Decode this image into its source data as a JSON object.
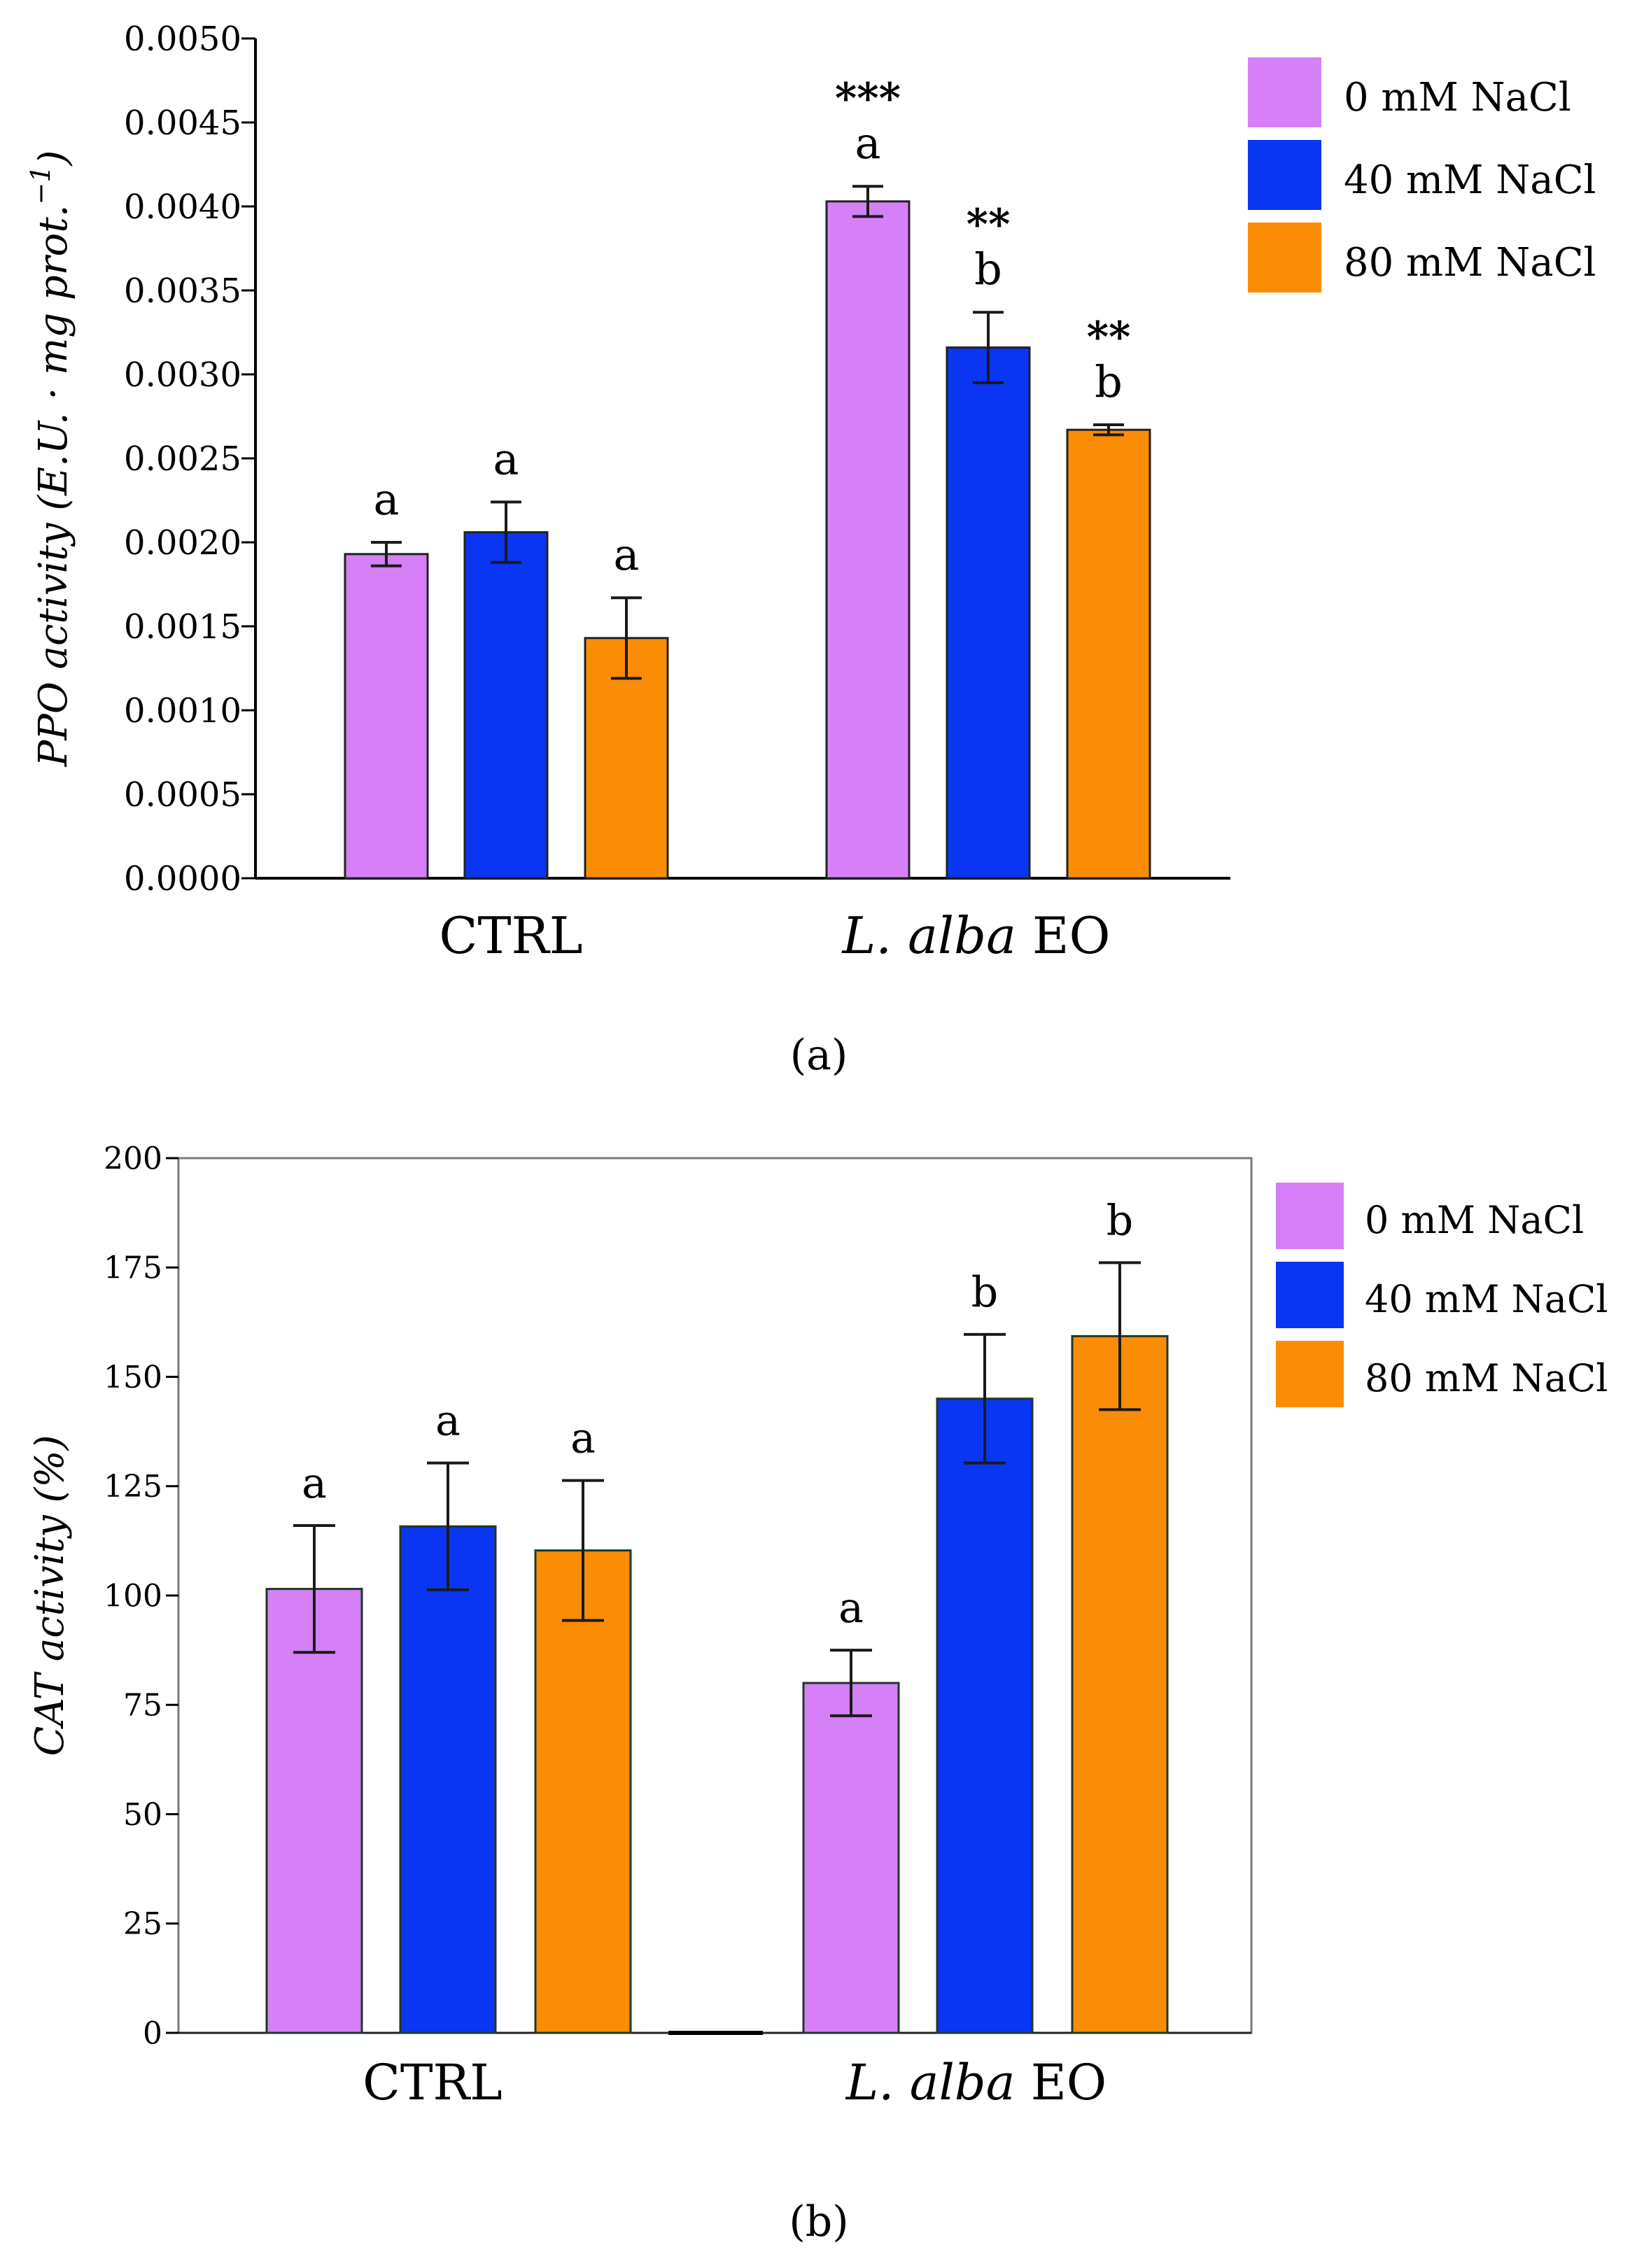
{
  "chart_data": [
    {
      "panel": "a",
      "type": "bar",
      "caption": "(a)",
      "ylabel": "PPO activity (E.U. · mg prot.",
      "ylabel_sup": "−1",
      "ylabel_close": ")",
      "ylim": [
        0,
        0.005
      ],
      "yticks": [
        "0.0000",
        "0.0005",
        "0.0010",
        "0.0015",
        "0.0020",
        "0.0025",
        "0.0030",
        "0.0035",
        "0.0040",
        "0.0045",
        "0.0050"
      ],
      "yticks_values": [
        0,
        0.0005,
        0.001,
        0.0015,
        0.002,
        0.0025,
        0.003,
        0.0035,
        0.004,
        0.0045,
        0.005
      ],
      "groups": [
        {
          "label": "CTRL",
          "italic": "",
          "rest": ""
        },
        {
          "label": "",
          "italic": "L. alba",
          "rest": " EO"
        }
      ],
      "series": [
        {
          "name": "0 mM NaCl",
          "color": "#d580f7",
          "values": [
            0.00193,
            0.00403
          ],
          "errors": [
            7e-05,
            9e-05
          ],
          "letters": [
            "a",
            "a"
          ],
          "stars": [
            "",
            "***"
          ]
        },
        {
          "name": "40 mM NaCl",
          "color": "#0a35f2",
          "values": [
            0.00206,
            0.00316
          ],
          "errors": [
            0.00018,
            0.00021
          ],
          "letters": [
            "a",
            "b"
          ],
          "stars": [
            "",
            "**"
          ]
        },
        {
          "name": "80 mM NaCl",
          "color": "#fb8c05",
          "values": [
            0.00143,
            0.00267
          ],
          "errors": [
            0.00024,
            3e-05
          ],
          "letters": [
            "a",
            "b"
          ],
          "stars": [
            "",
            "**"
          ]
        }
      ]
    },
    {
      "panel": "b",
      "type": "bar",
      "caption": "(b)",
      "ylabel": "CAT activity (%)",
      "ylim": [
        0,
        200
      ],
      "yticks": [
        "0",
        "25",
        "50",
        "75",
        "100",
        "125",
        "150",
        "175",
        "200"
      ],
      "yticks_values": [
        0,
        25,
        50,
        75,
        100,
        125,
        150,
        175,
        200
      ],
      "groups": [
        {
          "label": "CTRL",
          "italic": "",
          "rest": ""
        },
        {
          "label": "",
          "italic": "L. alba",
          "rest": " EO"
        }
      ],
      "series": [
        {
          "name": "0 mM NaCl",
          "color": "#d580f7",
          "values": [
            101.5,
            80
          ],
          "errors": [
            14.5,
            7.5
          ],
          "letters": [
            "a",
            "a"
          ]
        },
        {
          "name": "40 mM NaCl",
          "color": "#0a35f2",
          "values": [
            115.8,
            145
          ],
          "errors": [
            14.5,
            14.7
          ],
          "letters": [
            "a",
            "b"
          ]
        },
        {
          "name": "80 mM NaCl",
          "color": "#fb8c05",
          "values": [
            110.3,
            159.3
          ],
          "errors": [
            16,
            16.8
          ],
          "letters": [
            "a",
            "b"
          ]
        }
      ]
    }
  ]
}
